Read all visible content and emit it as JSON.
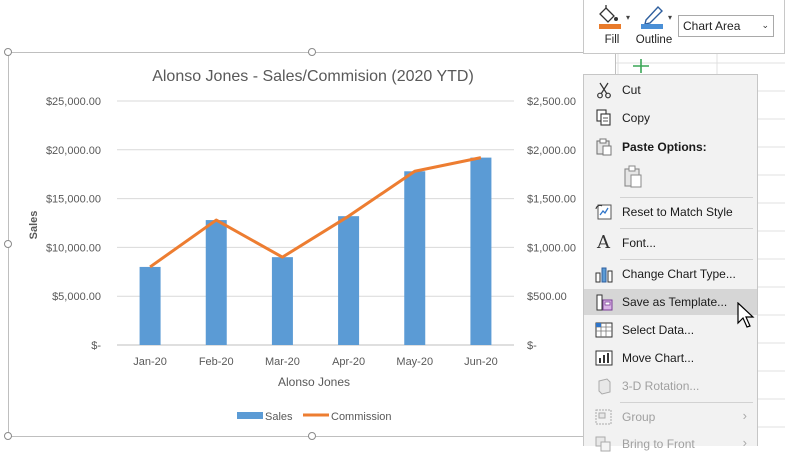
{
  "toolbar": {
    "fill_label": "Fill",
    "outline_label": "Outline",
    "chart_element_value": "Chart Area",
    "fill_color": "#e97b2b",
    "outline_color": "#4a8fd6"
  },
  "context_menu": {
    "items": [
      {
        "label": "Cut",
        "icon": "scissors-icon",
        "enabled": true
      },
      {
        "label": "Copy",
        "icon": "copy-icon",
        "enabled": true
      },
      {
        "label": "Paste Options:",
        "icon": "paste-icon",
        "enabled": true
      },
      {
        "label": "Reset to Match Style",
        "icon": "reset-style-icon",
        "enabled": true
      },
      {
        "label": "Font...",
        "icon": "font-icon",
        "enabled": true
      },
      {
        "label": "Change Chart Type...",
        "icon": "chart-type-icon",
        "enabled": true
      },
      {
        "label": "Save as Template...",
        "icon": "save-template-icon",
        "enabled": true,
        "highlighted": true
      },
      {
        "label": "Select Data...",
        "icon": "select-data-icon",
        "enabled": true
      },
      {
        "label": "Move Chart...",
        "icon": "move-chart-icon",
        "enabled": true
      },
      {
        "label": "3-D Rotation...",
        "icon": "rotation-icon",
        "enabled": false
      },
      {
        "label": "Group",
        "icon": "group-icon",
        "enabled": false
      },
      {
        "label": "Bring to Front",
        "icon": "bring-front-icon",
        "enabled": false
      }
    ]
  },
  "chart_data": {
    "type": "bar",
    "title": "Alonso Jones - Sales/Commision (2020 YTD)",
    "xlabel": "Alonso Jones",
    "ylabel": "Sales",
    "categories": [
      "Jan-20",
      "Feb-20",
      "Mar-20",
      "Apr-20",
      "May-20",
      "Jun-20"
    ],
    "series": [
      {
        "name": "Sales",
        "type": "bar",
        "axis": "primary",
        "color": "#5b9bd5",
        "values": [
          8000,
          12800,
          9000,
          13200,
          17800,
          19200
        ]
      },
      {
        "name": "Commission",
        "type": "line",
        "axis": "secondary",
        "color": "#ed7d31",
        "values": [
          800,
          1280,
          900,
          1320,
          1780,
          1920
        ]
      }
    ],
    "ylim": [
      0,
      25000
    ],
    "y2lim": [
      0,
      2500
    ],
    "y_ticks": [
      "$-",
      "$5,000.00",
      "$10,000.00",
      "$15,000.00",
      "$20,000.00",
      "$25,000.00"
    ],
    "y2_ticks": [
      "$-",
      "$500.00",
      "$1,000.00",
      "$1,500.00",
      "$2,000.00",
      "$2,500.00"
    ],
    "grid": true,
    "legend": "bottom"
  }
}
